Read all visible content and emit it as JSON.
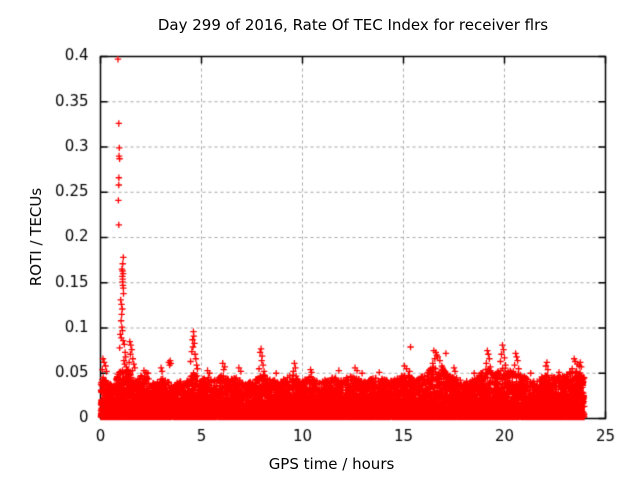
{
  "figure": {
    "background": "#ffffff",
    "text_color": "#000000"
  },
  "chart_data": {
    "type": "scatter",
    "title": "Day 299 of 2016, Rate Of TEC Index for receiver flrs",
    "xlabel": "GPS time / hours",
    "ylabel": "ROTI / TECUs",
    "xlim": [
      0,
      25
    ],
    "ylim": [
      0,
      0.4
    ],
    "xticks": [
      0,
      5,
      10,
      15,
      20,
      25
    ],
    "xtick_labels": [
      "0",
      "5",
      "10",
      "15",
      "20",
      "25"
    ],
    "yticks": [
      0,
      0.05,
      0.1,
      0.15,
      0.2,
      0.25,
      0.3,
      0.35,
      0.4
    ],
    "ytick_labels": [
      "0",
      "0.05",
      "0.1",
      "0.15",
      "0.2",
      "0.25",
      "0.3",
      "0.35",
      "0.4"
    ],
    "grid": true,
    "grid_color": "#a8a8a8",
    "border_color": "#000000",
    "marker": "+",
    "marker_color": "#ff0000",
    "legend": "none",
    "time_range_hours": [
      0.02,
      23.95
    ],
    "baseline_description": "dense band of + markers from 0 up to ~0.05 TECU across all 24 hours, spiky texture, solid red below ~0.03",
    "band_envelope": [
      [
        0.0,
        0.048
      ],
      [
        0.3,
        0.04
      ],
      [
        0.6,
        0.036
      ],
      [
        0.9,
        0.05
      ],
      [
        1.2,
        0.055
      ],
      [
        1.5,
        0.05
      ],
      [
        1.8,
        0.042
      ],
      [
        2.1,
        0.048
      ],
      [
        2.4,
        0.042
      ],
      [
        2.7,
        0.038
      ],
      [
        3.0,
        0.045
      ],
      [
        3.3,
        0.04
      ],
      [
        3.6,
        0.036
      ],
      [
        3.9,
        0.04
      ],
      [
        4.2,
        0.038
      ],
      [
        4.6,
        0.05
      ],
      [
        5.0,
        0.042
      ],
      [
        5.3,
        0.046
      ],
      [
        5.6,
        0.04
      ],
      [
        6.0,
        0.048
      ],
      [
        6.4,
        0.042
      ],
      [
        6.8,
        0.045
      ],
      [
        7.2,
        0.038
      ],
      [
        7.6,
        0.04
      ],
      [
        8.0,
        0.05
      ],
      [
        8.4,
        0.042
      ],
      [
        8.8,
        0.04
      ],
      [
        9.2,
        0.044
      ],
      [
        9.6,
        0.048
      ],
      [
        10.0,
        0.04
      ],
      [
        10.4,
        0.045
      ],
      [
        10.8,
        0.04
      ],
      [
        11.2,
        0.042
      ],
      [
        11.6,
        0.045
      ],
      [
        12.0,
        0.042
      ],
      [
        12.4,
        0.046
      ],
      [
        12.8,
        0.042
      ],
      [
        13.2,
        0.04
      ],
      [
        13.6,
        0.044
      ],
      [
        14.0,
        0.042
      ],
      [
        14.4,
        0.04
      ],
      [
        14.8,
        0.045
      ],
      [
        15.2,
        0.048
      ],
      [
        15.6,
        0.042
      ],
      [
        16.0,
        0.046
      ],
      [
        16.4,
        0.055
      ],
      [
        16.8,
        0.058
      ],
      [
        17.2,
        0.048
      ],
      [
        17.6,
        0.044
      ],
      [
        18.0,
        0.04
      ],
      [
        18.4,
        0.042
      ],
      [
        18.8,
        0.048
      ],
      [
        19.2,
        0.055
      ],
      [
        19.6,
        0.05
      ],
      [
        20.0,
        0.055
      ],
      [
        20.4,
        0.052
      ],
      [
        20.8,
        0.048
      ],
      [
        21.2,
        0.042
      ],
      [
        21.6,
        0.04
      ],
      [
        22.0,
        0.048
      ],
      [
        22.4,
        0.044
      ],
      [
        22.8,
        0.046
      ],
      [
        23.2,
        0.05
      ],
      [
        23.6,
        0.052
      ],
      [
        23.95,
        0.045
      ]
    ],
    "spike_points": [
      [
        0.866,
        0.397
      ],
      [
        0.906,
        0.326
      ],
      [
        0.93,
        0.299
      ],
      [
        0.92,
        0.29
      ],
      [
        0.945,
        0.287
      ],
      [
        0.91,
        0.266
      ],
      [
        0.905,
        0.258
      ],
      [
        0.885,
        0.241
      ],
      [
        0.906,
        0.214
      ],
      [
        1.13,
        0.178
      ],
      [
        1.1,
        0.171
      ],
      [
        1.06,
        0.165
      ],
      [
        1.09,
        0.163
      ],
      [
        1.12,
        0.16
      ],
      [
        1.08,
        0.157
      ],
      [
        1.1,
        0.154
      ],
      [
        1.09,
        0.151
      ],
      [
        1.11,
        0.147
      ],
      [
        1.13,
        0.144
      ],
      [
        1.14,
        0.138
      ],
      [
        1.0,
        0.131
      ],
      [
        1.04,
        0.126
      ],
      [
        1.08,
        0.121
      ],
      [
        1.05,
        0.115
      ],
      [
        1.02,
        0.108
      ],
      [
        1.06,
        0.101
      ],
      [
        1.09,
        0.097
      ],
      [
        0.98,
        0.093
      ],
      [
        1.03,
        0.089
      ],
      [
        1.12,
        0.086
      ],
      [
        1.18,
        0.082
      ],
      [
        0.95,
        0.078
      ],
      [
        1.22,
        0.073
      ],
      [
        1.25,
        0.068
      ],
      [
        1.16,
        0.064
      ],
      [
        1.2,
        0.06
      ],
      [
        1.28,
        0.057
      ],
      [
        1.32,
        0.054
      ],
      [
        0.12,
        0.066
      ],
      [
        0.18,
        0.062
      ],
      [
        0.25,
        0.058
      ],
      [
        0.09,
        0.054
      ],
      [
        0.3,
        0.052
      ],
      [
        1.45,
        0.085
      ],
      [
        1.5,
        0.081
      ],
      [
        1.55,
        0.076
      ],
      [
        1.48,
        0.071
      ],
      [
        1.6,
        0.066
      ],
      [
        1.42,
        0.062
      ],
      [
        1.65,
        0.06
      ],
      [
        1.7,
        0.056
      ],
      [
        1.58,
        0.053
      ],
      [
        2.15,
        0.053
      ],
      [
        2.25,
        0.051
      ],
      [
        2.35,
        0.05
      ],
      [
        3.0,
        0.056
      ],
      [
        3.05,
        0.052
      ],
      [
        3.38,
        0.062
      ],
      [
        3.45,
        0.064
      ],
      [
        3.42,
        0.059
      ],
      [
        3.48,
        0.061
      ],
      [
        4.6,
        0.096
      ],
      [
        4.62,
        0.091
      ],
      [
        4.56,
        0.087
      ],
      [
        4.65,
        0.083
      ],
      [
        4.58,
        0.079
      ],
      [
        4.52,
        0.074
      ],
      [
        4.68,
        0.071
      ],
      [
        4.72,
        0.066
      ],
      [
        4.46,
        0.063
      ],
      [
        4.76,
        0.059
      ],
      [
        4.8,
        0.055
      ],
      [
        5.3,
        0.053
      ],
      [
        5.4,
        0.05
      ],
      [
        6.05,
        0.061
      ],
      [
        6.15,
        0.057
      ],
      [
        6.1,
        0.054
      ],
      [
        6.85,
        0.056
      ],
      [
        6.95,
        0.052
      ],
      [
        7.95,
        0.077
      ],
      [
        7.9,
        0.073
      ],
      [
        8.0,
        0.069
      ],
      [
        7.98,
        0.064
      ],
      [
        8.05,
        0.059
      ],
      [
        7.85,
        0.055
      ],
      [
        8.1,
        0.052
      ],
      [
        8.7,
        0.05
      ],
      [
        9.6,
        0.061
      ],
      [
        9.65,
        0.056
      ],
      [
        9.55,
        0.052
      ],
      [
        10.4,
        0.054
      ],
      [
        10.45,
        0.051
      ],
      [
        11.8,
        0.053
      ],
      [
        12.6,
        0.056
      ],
      [
        12.7,
        0.053
      ],
      [
        12.95,
        0.05
      ],
      [
        13.8,
        0.051
      ],
      [
        15.05,
        0.058
      ],
      [
        15.15,
        0.055
      ],
      [
        15.3,
        0.052
      ],
      [
        15.35,
        0.079
      ],
      [
        16.5,
        0.075
      ],
      [
        16.6,
        0.073
      ],
      [
        16.65,
        0.07
      ],
      [
        16.7,
        0.068
      ],
      [
        16.55,
        0.066
      ],
      [
        16.8,
        0.064
      ],
      [
        16.45,
        0.061
      ],
      [
        16.9,
        0.058
      ],
      [
        16.35,
        0.055
      ],
      [
        17.0,
        0.053
      ],
      [
        17.1,
        0.072
      ],
      [
        17.5,
        0.056
      ],
      [
        17.55,
        0.052
      ],
      [
        18.5,
        0.05
      ],
      [
        19.15,
        0.075
      ],
      [
        19.2,
        0.071
      ],
      [
        19.25,
        0.066
      ],
      [
        19.1,
        0.061
      ],
      [
        19.3,
        0.057
      ],
      [
        19.9,
        0.081
      ],
      [
        19.95,
        0.076
      ],
      [
        19.85,
        0.071
      ],
      [
        20.0,
        0.067
      ],
      [
        19.8,
        0.063
      ],
      [
        20.05,
        0.059
      ],
      [
        20.55,
        0.072
      ],
      [
        20.6,
        0.068
      ],
      [
        20.65,
        0.064
      ],
      [
        20.5,
        0.059
      ],
      [
        20.7,
        0.055
      ],
      [
        21.3,
        0.05
      ],
      [
        22.1,
        0.062
      ],
      [
        22.05,
        0.058
      ],
      [
        22.15,
        0.054
      ],
      [
        22.7,
        0.051
      ],
      [
        23.45,
        0.066
      ],
      [
        23.5,
        0.063
      ],
      [
        23.6,
        0.06
      ],
      [
        23.7,
        0.058
      ],
      [
        23.35,
        0.055
      ],
      [
        23.75,
        0.062
      ],
      [
        23.8,
        0.057
      ]
    ]
  }
}
